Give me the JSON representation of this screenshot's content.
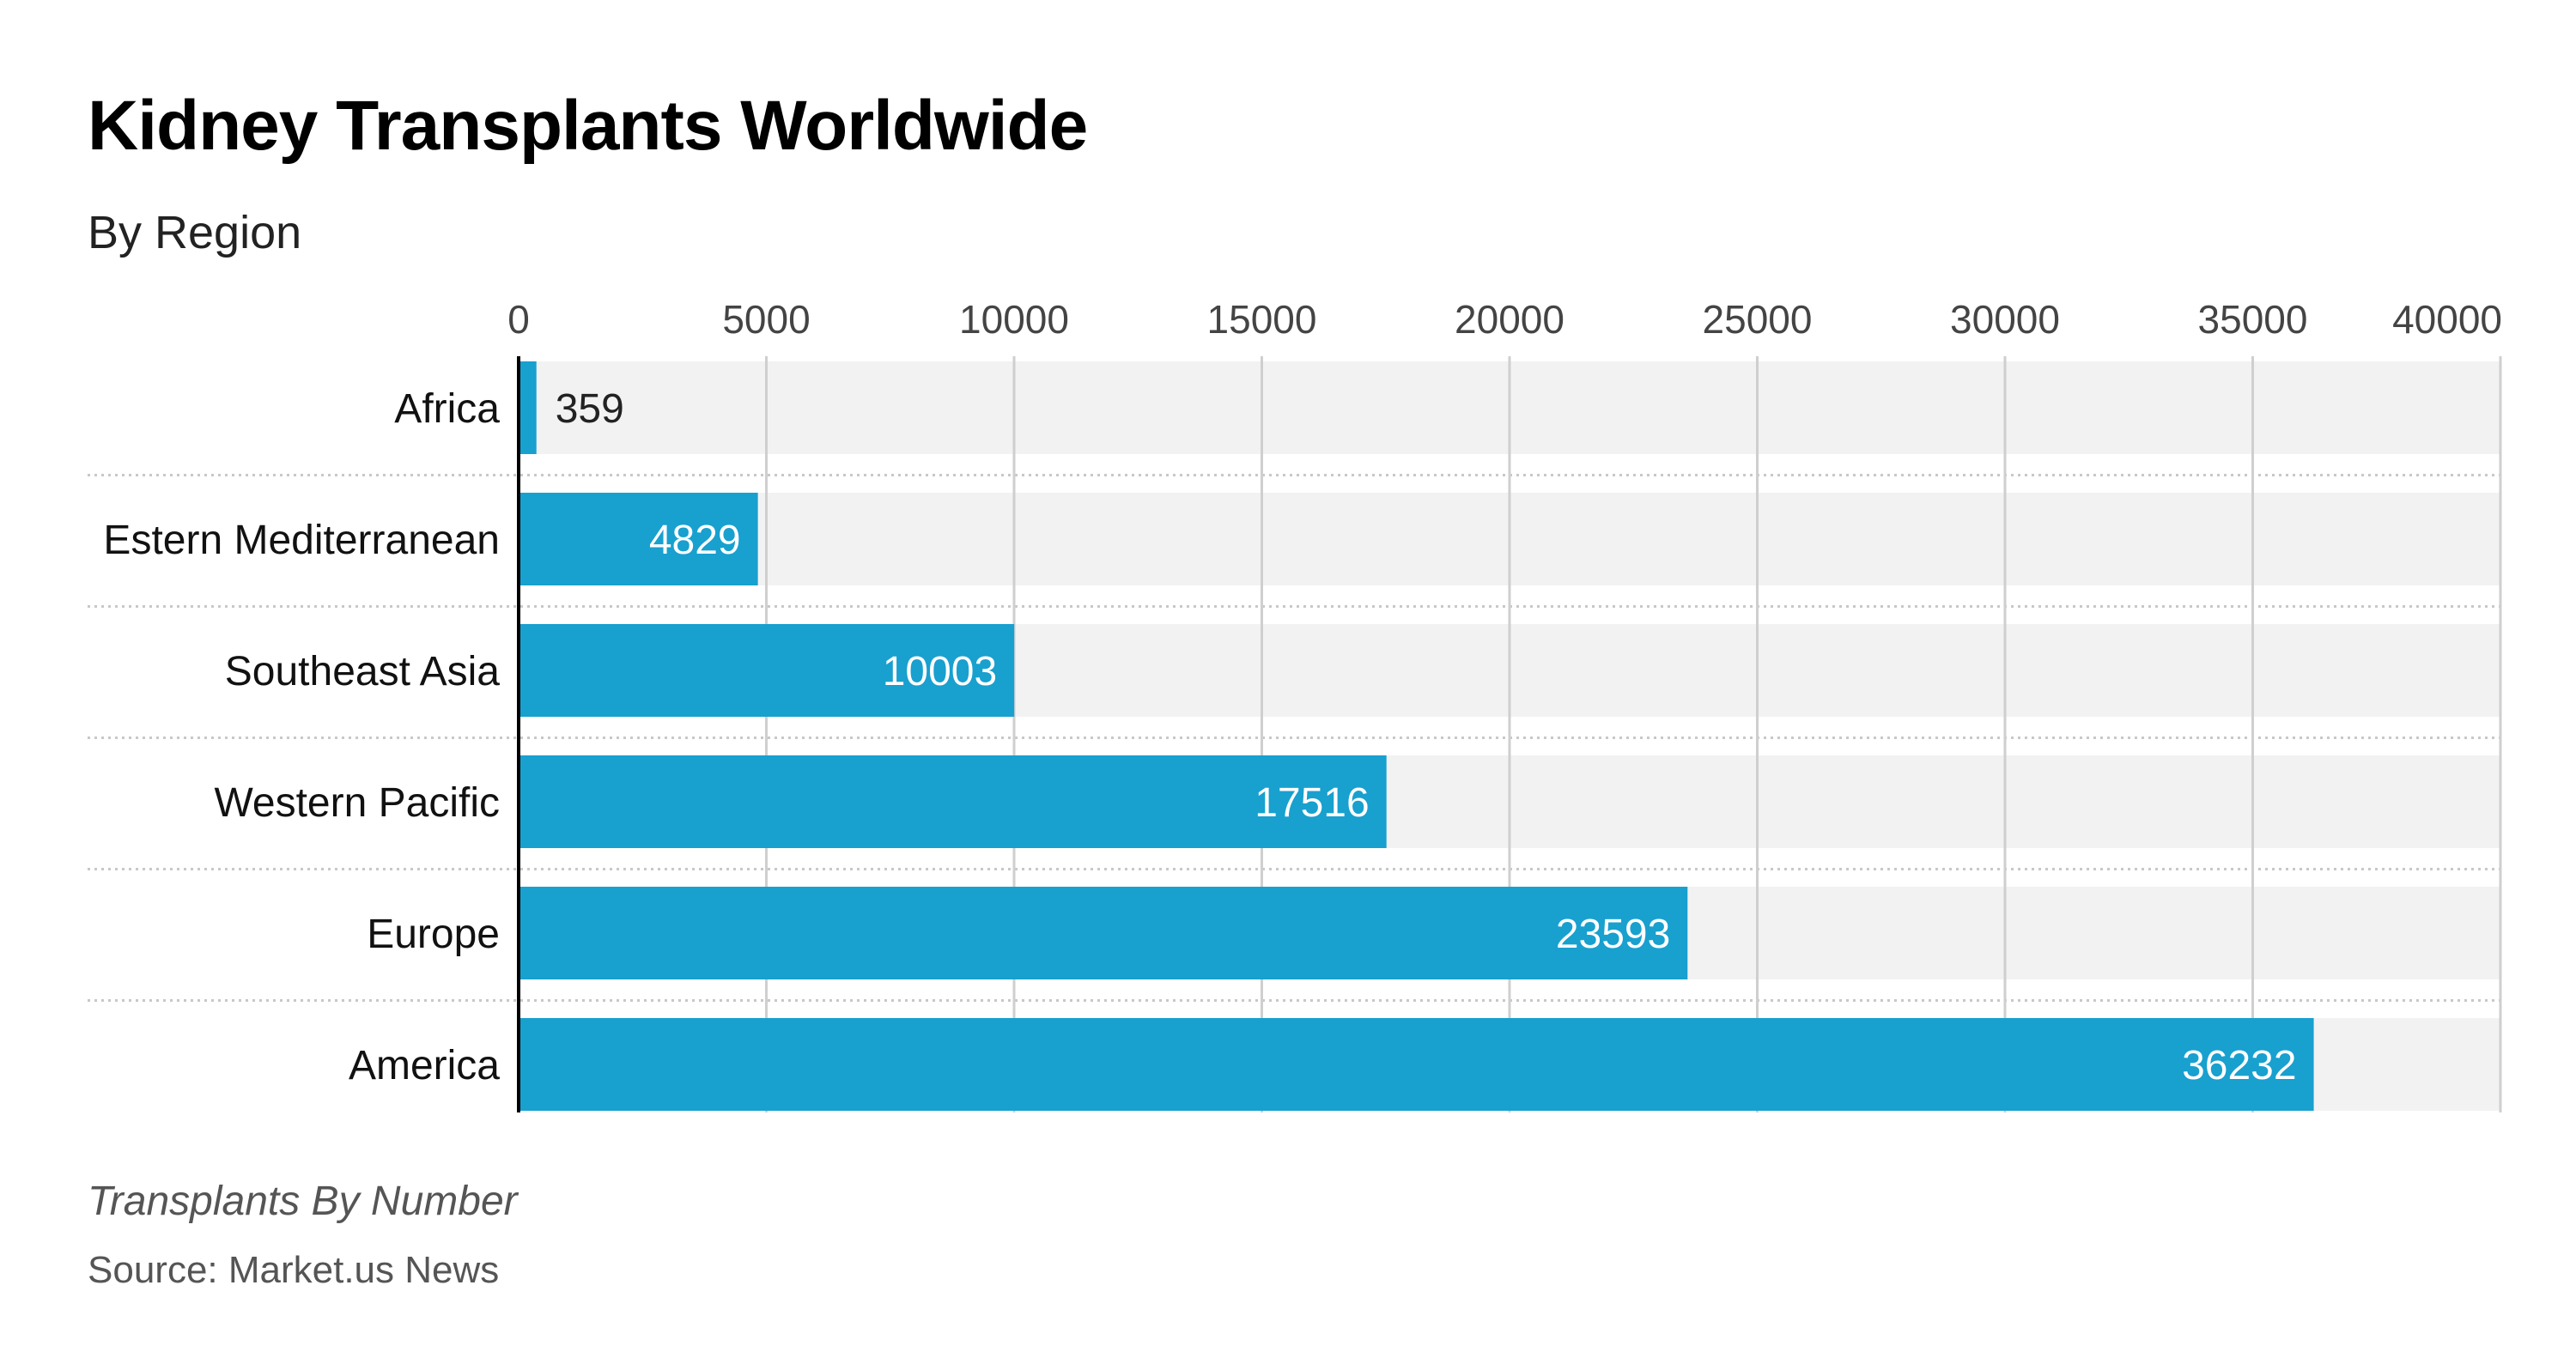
{
  "title": "Kidney Transplants Worldwide",
  "subtitle": "By Region",
  "footnote": "Transplants By Number",
  "source": "Source: Market.us News",
  "colors": {
    "bar": "#18a0cf",
    "track": "#f2f2f2",
    "grid": "#cfcfcf",
    "label_inside": "#ffffff",
    "label_outside": "#222222"
  },
  "chart_data": {
    "type": "bar",
    "orientation": "horizontal",
    "categories": [
      "Africa",
      "Estern Mediterranean",
      "Southeast Asia",
      "Western Pacific",
      "Europe",
      "America"
    ],
    "values": [
      359,
      4829,
      10003,
      17516,
      23593,
      36232
    ],
    "value_labels": [
      "359",
      "4829",
      "10003",
      "17516",
      "23593",
      "36232"
    ],
    "xlim": [
      0,
      40000
    ],
    "x_ticks": [
      "0",
      "5000",
      "10000",
      "15000",
      "20000",
      "25000",
      "30000",
      "35000",
      "40000"
    ],
    "tick_values": [
      0,
      5000,
      10000,
      15000,
      20000,
      25000,
      30000,
      35000,
      40000
    ],
    "axis_position": "top",
    "grid": true
  }
}
